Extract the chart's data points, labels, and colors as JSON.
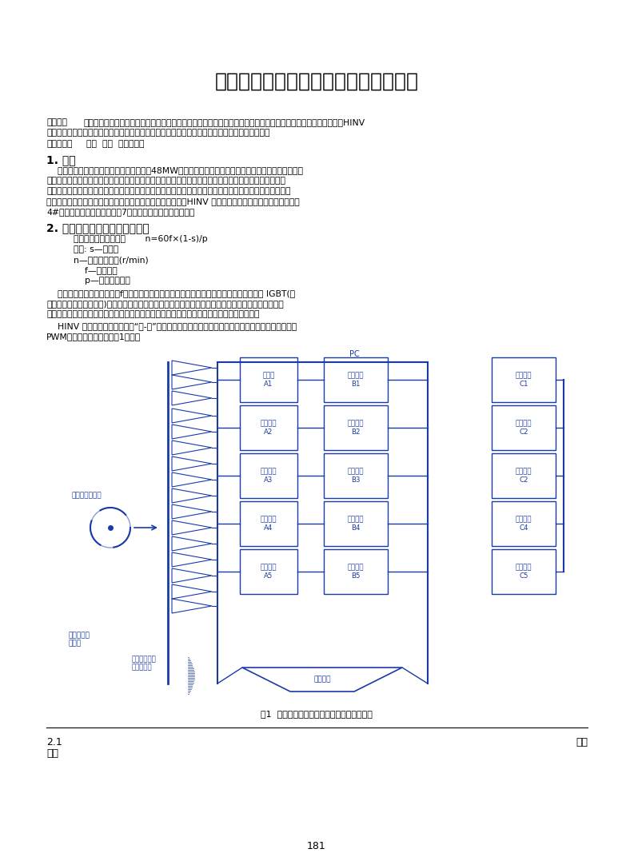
{
  "title": "高压变频器在高炉风机、水泵中的应用",
  "abstract_line1": "【摘要】风机、水泵是炼铁厂的用电大户，结合现代高新技术，利用新工艺，采用北京动力源科技股份有限公司的HINV",
  "abstract_line2": "系列高压变频器，大大节约了风机、水泵的用电量，提高了设备的功率因素，降低了运行的成本。",
  "keywords_label": "【关键词】",
  "keywords_text": "风机  水泵  高压变频器",
  "sec1_title": "1. 前言",
  "sec1_lines": [
    "    威鬢公司炼铁厂风机、水泵装机容量约为48MW，由于全部采用的是全压启动方式，启动电流大，加速",
    "了电气设备绕缘老化程度，过大的起动转矩产生机械冲击，对被带动的设备造成大的冲击力，缩短了机械",
    "设备使用寿命，影响精确度。如使联轴器损坏等，由于启动时的电压波动，更对其余电气设备造成了影响。",
    "我厂经过技术经济比较，采用北京动力源科技股份有限公司的HINV 系列高压变频器，在我厂动力水泵房、",
    "4#高炉炉前除尘及噴煌风机等7台设备中得到了很好的应用。"
  ],
  "sec2_title": "2. 高压变频器的系统组成和原理",
  "sec2_formula": "    由电机转速公式可知：       n=60f×(1-s)/p",
  "sec2_formula_lines": [
    "    其中: s—转差率",
    "    n—转子实际转数(r/min)",
    "        f—电流频率",
    "        p—电机的极对数"
  ],
  "sec2_para2_lines": [
    "    可见，只要改变电机的频率f，就可以实现电机的转速调节。高电压大功率变频器通过控制 IGBT(绕",
    "缘栅双极型电力场效应管)的导通和关断，使输出频率连续可调。而且是随着频率的变化，输出电流、电",
    "压、功率都将发生变化，即负荷大时转速大，输出功率大，负荷小时转速小，输出功率也小。"
  ],
  "sec2_para3_lines": [
    "    HINV 系列高压变频器为直接“高-高”式结构，不需要输出升压变压器，输出单元为单元串接移相式",
    "PWM方式，其主要电路如图1所示。"
  ],
  "fig_caption": "图1  单元串联多电平变频系统主电路结构和图",
  "bottom_left1": "2.1",
  "bottom_left2": "单元",
  "bottom_right": "功率",
  "page_num": "181",
  "dc": "#1a3aaa",
  "tc": "#000000",
  "bg": "#ffffff"
}
